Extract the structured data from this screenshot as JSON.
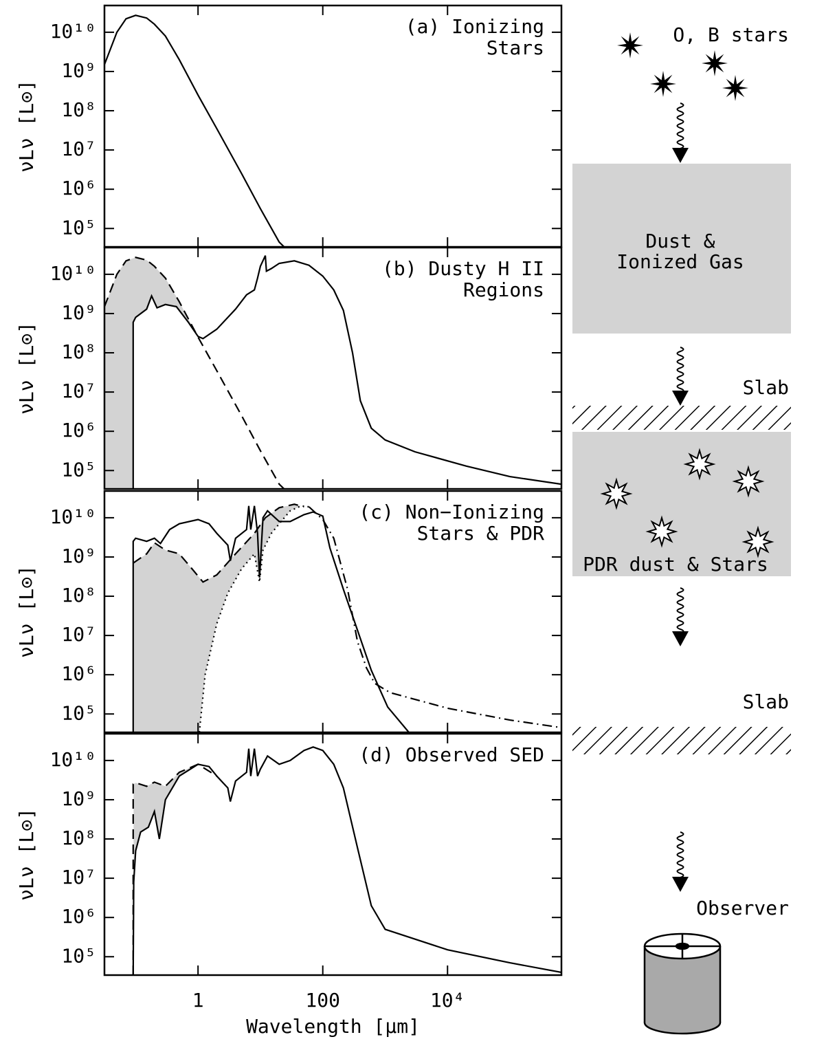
{
  "chart_data": [
    {
      "type": "line",
      "label": [
        "(a) Ionizing",
        "Stars"
      ],
      "ylabel": "νLν [L⊙]",
      "xlim": [
        0.0316,
        670000
      ],
      "ylim": [
        34000,
        48000000000.0
      ],
      "xticks": [
        1,
        100,
        {
          "value": 10000,
          "label": "10⁴"
        }
      ],
      "yticks": [
        {
          "value": 100000.0,
          "label": "10⁵"
        },
        {
          "value": 1000000.0,
          "label": "10⁶"
        },
        {
          "value": 10000000.0,
          "label": "10⁷"
        },
        {
          "value": 100000000.0,
          "label": "10⁸"
        },
        {
          "value": 1000000000.0,
          "label": "10⁹"
        },
        {
          "value": 10000000000.0,
          "label": "10¹⁰"
        }
      ],
      "shaded": false,
      "series": [
        {
          "color": "#000000",
          "dash": "solid",
          "x": [
            0.0316,
            0.05,
            0.07,
            0.1,
            0.15,
            0.2,
            0.3,
            0.5,
            1,
            2,
            5,
            10,
            20,
            24
          ],
          "values": [
            1500000000.0,
            10000000000.0,
            22000000000.0,
            27000000000.0,
            23000000000.0,
            16000000000.0,
            8000000000.0,
            2000000000.0,
            250000000.0,
            35000000.0,
            2500000.0,
            320000.0,
            45000,
            34000
          ]
        }
      ]
    },
    {
      "type": "line",
      "label": [
        "(b) Dusty H II",
        "Regions"
      ],
      "ylabel": "νLν [L⊙]",
      "xlim": [
        0.0316,
        670000
      ],
      "ylim": [
        34000,
        48000000000.0
      ],
      "xticks": [
        1,
        100,
        {
          "value": 10000,
          "label": "10⁴"
        }
      ],
      "yticks": [
        {
          "value": 100000.0,
          "label": "10⁵"
        },
        {
          "value": 1000000.0,
          "label": "10⁶"
        },
        {
          "value": 10000000.0,
          "label": "10⁷"
        },
        {
          "value": 100000000.0,
          "label": "10⁸"
        },
        {
          "value": 1000000000.0,
          "label": "10⁹"
        },
        {
          "value": 10000000000.0,
          "label": "10¹⁰"
        }
      ],
      "shaded": true,
      "series": [
        {
          "color": "#000000",
          "dash": "dashed",
          "x": [
            0.0316,
            0.05,
            0.07,
            0.1,
            0.15,
            0.2,
            0.3,
            0.5,
            1,
            2,
            5,
            10,
            20,
            24
          ],
          "values": [
            1500000000.0,
            10000000000.0,
            22000000000.0,
            27000000000.0,
            23000000000.0,
            16000000000.0,
            8000000000.0,
            2000000000.0,
            250000000.0,
            35000000.0,
            2500000.0,
            320000.0,
            45000,
            34000
          ]
        },
        {
          "color": "#000000",
          "dash": "solid",
          "x": [
            0.0912,
            0.0912,
            0.1,
            0.15,
            0.18,
            0.22,
            0.3,
            0.45,
            0.7,
            1.0,
            1.2,
            2,
            4,
            6,
            8,
            9,
            10,
            11.5,
            12,
            12.5,
            15,
            20,
            35,
            60,
            100,
            150,
            214,
            300,
            400,
            600,
            1000,
            3000,
            20000,
            100000,
            670000
          ],
          "values": [
            34000,
            600000000.0,
            800000000.0,
            1300000000.0,
            2800000000.0,
            1400000000.0,
            1700000000.0,
            1500000000.0,
            600000000.0,
            260000000.0,
            230000000.0,
            400000000.0,
            1300000000.0,
            3000000000.0,
            4000000000.0,
            8000000000.0,
            16000000000.0,
            26000000000.0,
            30000000000.0,
            12000000000.0,
            14000000000.0,
            19000000000.0,
            22000000000.0,
            17000000000.0,
            9000000000.0,
            4000000000.0,
            1200000000.0,
            100000000.0,
            6000000.0,
            1200000.0,
            600000.0,
            300000.0,
            130000.0,
            70000,
            45000
          ]
        }
      ]
    },
    {
      "type": "line",
      "label": [
        "(c) Non−Ionizing",
        "Stars & PDR"
      ],
      "ylabel": "νLν [L⊙]",
      "xlim": [
        0.0316,
        670000
      ],
      "ylim": [
        34000,
        48000000000.0
      ],
      "xticks": [
        1,
        100,
        {
          "value": 10000,
          "label": "10⁴"
        }
      ],
      "yticks": [
        {
          "value": 100000.0,
          "label": "10⁵"
        },
        {
          "value": 1000000.0,
          "label": "10⁶"
        },
        {
          "value": 10000000.0,
          "label": "10⁷"
        },
        {
          "value": 100000000.0,
          "label": "10⁸"
        },
        {
          "value": 1000000000.0,
          "label": "10⁹"
        },
        {
          "value": 10000000000.0,
          "label": "10¹⁰"
        }
      ],
      "shaded": true,
      "series": [
        {
          "color": "#000000",
          "dash": "dashed",
          "x": [
            0.0912,
            0.15,
            0.2,
            0.3,
            0.5,
            0.8,
            1.2,
            2,
            4,
            8,
            12,
            20,
            35,
            50
          ],
          "values": [
            700000000.0,
            1200000000.0,
            2300000000.0,
            1500000000.0,
            1200000000.0,
            500000000.0,
            230000000.0,
            350000000.0,
            1200000000.0,
            4000000000.0,
            10000000000.0,
            18000000000.0,
            22000000000.0,
            19000000000.0
          ]
        },
        {
          "color": "#000000",
          "dash": "dotted",
          "x": [
            1.05,
            1.3,
            2,
            3,
            5,
            8,
            9.7,
            11,
            15,
            20,
            30,
            45,
            60
          ],
          "values": [
            34000,
            1000000.0,
            20000000.0,
            120000000.0,
            500000000.0,
            1200000000.0,
            230000000.0,
            1500000000.0,
            4000000000.0,
            7000000000.0,
            15000000000.0,
            20000000000.0,
            19000000000.0
          ]
        },
        {
          "color": "#000000",
          "dash": "dashdot",
          "x": [
            60,
            100,
            150,
            250,
            360,
            500,
            680,
            1200,
            10000,
            100000,
            670000
          ],
          "values": [
            19000000000.0,
            9000000000.0,
            3000000000.0,
            150000000.0,
            7000000.0,
            1500000.0,
            600000.0,
            350000.0,
            140000.0,
            70000,
            45000
          ]
        },
        {
          "color": "#000000",
          "dash": "solid",
          "x": [
            0.0912,
            0.0912,
            0.1,
            0.15,
            0.2,
            0.25,
            0.35,
            0.5,
            1,
            1.5,
            2,
            3,
            3.3,
            4,
            6,
            6.5,
            7,
            8,
            9,
            9.7,
            11,
            13,
            20,
            30,
            50,
            70,
            100,
            130,
            214,
            600,
            1100,
            2400
          ],
          "values": [
            34000,
            2500000000.0,
            3000000000.0,
            2500000000.0,
            3000000000.0,
            2200000000.0,
            5000000000.0,
            7000000000.0,
            9000000000.0,
            7000000000.0,
            4000000000.0,
            2000000000.0,
            800000000.0,
            3000000000.0,
            5000000000.0,
            20000000000.0,
            5000000000.0,
            20000000000.0,
            4000000000.0,
            300000000.0,
            10000000000.0,
            15000000000.0,
            8000000000.0,
            8000000000.0,
            12000000000.0,
            14000000000.0,
            11000000000.0,
            1700000000.0,
            150000000.0,
            1300000.0,
            150000.0,
            34000
          ]
        }
      ]
    },
    {
      "type": "line",
      "label": [
        "(d) Observed SED"
      ],
      "ylabel": "νLν [L⊙]",
      "xlabel": "Wavelength [μm]",
      "xlim": [
        0.0316,
        670000
      ],
      "ylim": [
        34000,
        48000000000.0
      ],
      "xticks": [
        1,
        100,
        {
          "value": 10000,
          "label": "10⁴"
        }
      ],
      "yticks": [
        {
          "value": 100000.0,
          "label": "10⁵"
        },
        {
          "value": 1000000.0,
          "label": "10⁶"
        },
        {
          "value": 10000000.0,
          "label": "10⁷"
        },
        {
          "value": 100000000.0,
          "label": "10⁸"
        },
        {
          "value": 1000000000.0,
          "label": "10⁹"
        },
        {
          "value": 10000000000.0,
          "label": "10¹⁰"
        }
      ],
      "shaded": true,
      "series": [
        {
          "color": "#000000",
          "dash": "dashed",
          "x": [
            0.0912,
            0.0912,
            0.1,
            0.15,
            0.2,
            0.3,
            0.5,
            1,
            2
          ],
          "values": [
            34000,
            2500000000.0,
            2700000000.0,
            2200000000.0,
            2800000000.0,
            2200000000.0,
            5000000000.0,
            8000000000.0,
            4000000000.0
          ]
        },
        {
          "color": "#000000",
          "dash": "solid",
          "x": [
            0.0912,
            0.093,
            0.1,
            0.12,
            0.16,
            0.2,
            0.24,
            0.3,
            0.5,
            1,
            1.5,
            2,
            3,
            3.3,
            4,
            6,
            6.5,
            7,
            8,
            9,
            10,
            13,
            20,
            30,
            50,
            70,
            100,
            150,
            214,
            360,
            600,
            1000,
            10000,
            100000,
            670000
          ],
          "values": [
            34000,
            8000000.0,
            50000000.0,
            150000000.0,
            200000000.0,
            500000000.0,
            100000000.0,
            1000000000.0,
            4000000000.0,
            8000000000.0,
            7000000000.0,
            4000000000.0,
            2000000000.0,
            900000000.0,
            3000000000.0,
            5000000000.0,
            20000000000.0,
            4000000000.0,
            20000000000.0,
            4000000000.0,
            6000000000.0,
            13000000000.0,
            8000000000.0,
            10000000000.0,
            18000000000.0,
            22000000000.0,
            18000000000.0,
            8000000000.0,
            2000000000.0,
            60000000.0,
            2000000.0,
            500000.0,
            150000.0,
            70000,
            40000
          ]
        }
      ]
    }
  ],
  "diagram": {
    "stars": "O, B stars",
    "box1": [
      "Dust &",
      "Ionized Gas"
    ],
    "slab1": "Slab",
    "box2": "PDR dust & Stars",
    "slab2": "Slab",
    "observer": "Observer"
  }
}
